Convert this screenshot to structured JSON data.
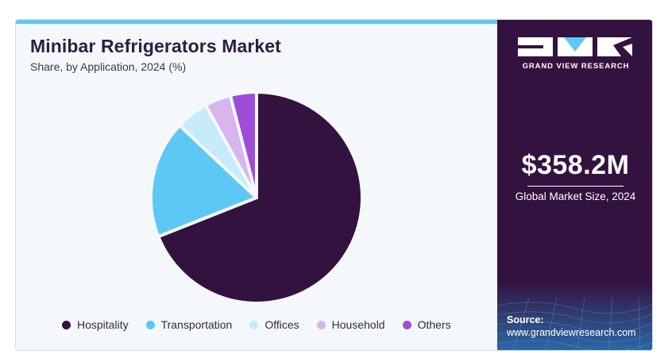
{
  "header": {
    "title": "Minibar Refrigerators Market",
    "subtitle": "Share, by Application, 2024 (%)"
  },
  "chart_data": {
    "type": "pie",
    "categories": [
      "Hospitality",
      "Transportation",
      "Offices",
      "Household",
      "Others"
    ],
    "values": [
      69,
      18,
      5,
      4,
      4
    ],
    "colors": [
      "#34123f",
      "#5dc8f5",
      "#c6ebfb",
      "#d7b5ee",
      "#9e4ed6"
    ],
    "legend_position": "bottom"
  },
  "sidebar": {
    "brand": "GRAND VIEW RESEARCH",
    "market_size_value": "$358.2M",
    "market_size_label": "Global Market Size, 2024",
    "source_label": "Source:",
    "source_url": "www.grandviewresearch.com"
  }
}
